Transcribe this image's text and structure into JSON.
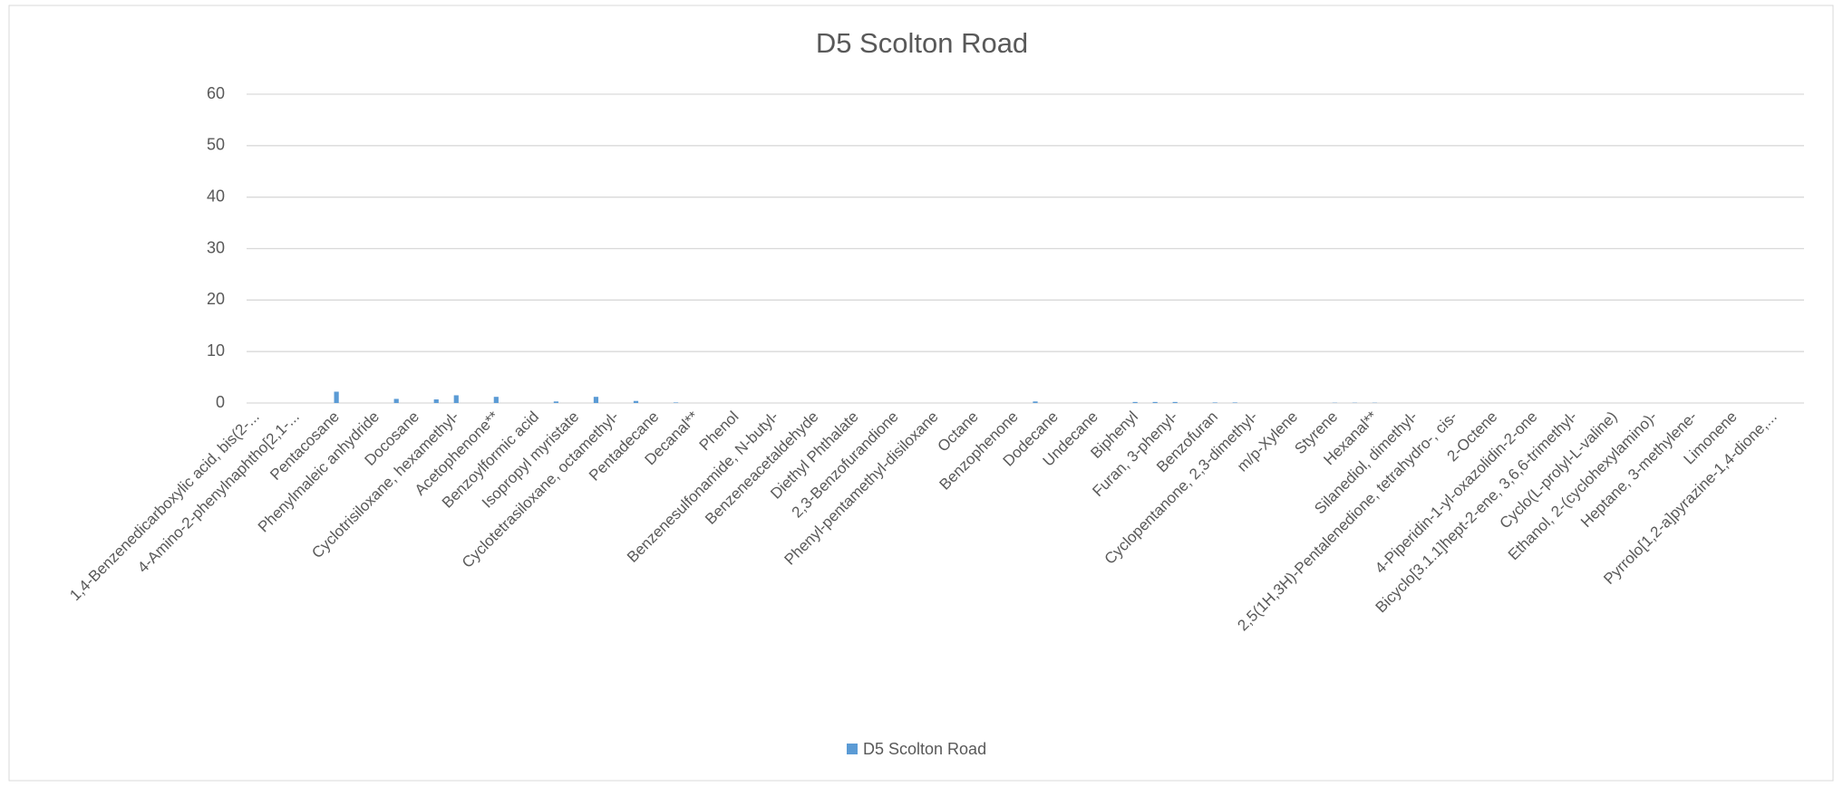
{
  "chart_data": {
    "type": "bar",
    "title": "D5 Scolton Road",
    "categories": [
      "1,4-Benzenedicarboxylic acid, bis(2-...",
      null,
      "4-Amino-2-phenylnaphtho[2,1-...",
      null,
      "Pentacosane",
      null,
      "Phenylmaleic anhydride",
      null,
      "Docosane",
      null,
      "Cyclotrisiloxane, hexamethyl-",
      null,
      "Acetophenone**",
      null,
      "Benzoylformic acid",
      null,
      "Isopropyl myristate",
      null,
      "Cyclotetrasiloxane, octamethyl-",
      null,
      "Pentadecane",
      null,
      "Decanal**",
      null,
      "Phenol",
      null,
      "Benzenesulfonamide, N-butyl-",
      null,
      "Benzeneacetaldehyde",
      null,
      "Diethyl Phthalate",
      null,
      "2,3-Benzofurandione",
      null,
      "Phenyl-pentamethyl-disiloxane",
      null,
      "Octane",
      null,
      "Benzophenone",
      null,
      "Dodecane",
      null,
      "Undecane",
      null,
      "Biphenyl",
      null,
      "Furan, 3-phenyl-",
      null,
      "Benzofuran",
      null,
      "Cyclopentanone, 2,3-dimethyl-",
      null,
      "m/p-Xylene",
      null,
      "Styrene",
      null,
      "Hexanal**",
      null,
      "Silanediol, dimethyl-",
      null,
      "2,5(1H,3H)-Pentalenedione, tetrahydro-, cis-",
      null,
      "2-Octene",
      null,
      "4-Piperidin-1-yl-oxazolidin-2-one",
      null,
      "Bicyclo[3.1.1]hept-2-ene, 3,6,6-trimethyl-",
      null,
      "Cyclo(L-prolyl-L-valine)",
      null,
      "Ethanol, 2-(cyclohexylamino)-",
      null,
      "Heptane, 3-methylene-",
      null,
      "Limonene",
      null,
      "Pyrrolo[1,2-a]pyrazine-1,4-dione,...",
      null
    ],
    "series": [
      {
        "name": "D5 Scolton Road",
        "color": "#5b9bd5",
        "values": [
          0,
          0,
          0,
          0,
          2.2,
          0,
          0,
          0.8,
          0,
          0.7,
          1.5,
          0,
          1.2,
          0,
          0,
          0.3,
          0,
          1.2,
          0,
          0.4,
          0,
          0.1,
          0,
          0,
          0,
          0,
          0,
          0,
          0,
          0,
          0,
          0,
          0,
          0,
          0,
          0,
          0,
          0,
          0,
          0.3,
          0,
          0,
          0,
          0,
          0.2,
          0.2,
          0.2,
          0,
          0.1,
          0.1,
          0,
          0,
          0,
          0,
          0.05,
          0.05,
          0.05,
          0,
          0,
          0,
          0,
          0,
          0,
          0,
          0,
          0,
          0,
          0,
          0,
          0,
          0,
          0,
          0,
          0,
          0,
          0,
          0,
          0
        ]
      }
    ],
    "ylim": [
      0,
      60
    ],
    "yticks": [
      0,
      10,
      20,
      30,
      40,
      50,
      60
    ],
    "grid": true,
    "legend": "bottom"
  }
}
